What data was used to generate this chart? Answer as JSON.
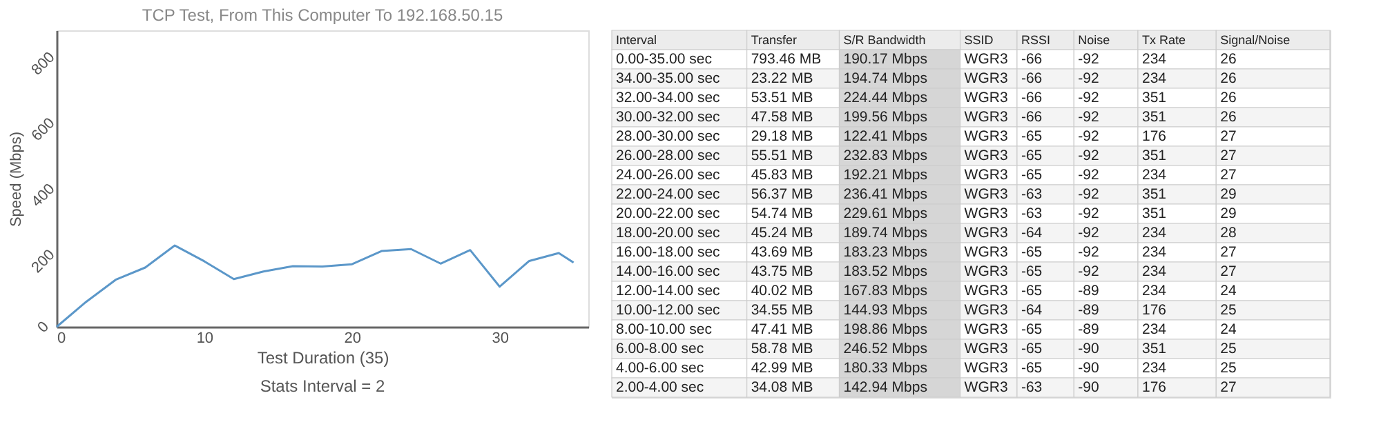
{
  "chart_data": [
    {
      "type": "line",
      "title": "TCP Test,  From This Computer To 192.168.50.15",
      "xlabel": "Test Duration (35)",
      "ylabel": "Speed (Mbps)",
      "annotations": [
        "Stats Interval = 2"
      ],
      "series": [
        {
          "color": "#5b97c9",
          "x": [
            0,
            2,
            4,
            6,
            8,
            10,
            12,
            14,
            16,
            18,
            20,
            22,
            24,
            26,
            28,
            30,
            32,
            34,
            35
          ],
          "values": [
            0,
            76,
            143,
            180,
            247,
            199,
            145,
            168,
            184,
            183,
            190,
            230,
            236,
            192,
            233,
            122,
            200,
            224,
            195
          ]
        }
      ],
      "xlim": [
        0,
        36
      ],
      "xticks": [
        0,
        10,
        20,
        30
      ],
      "ylim": [
        0,
        900
      ],
      "yticks": [
        0,
        200,
        400,
        600,
        800
      ],
      "grid": false,
      "legend": false,
      "marker": "none",
      "line_style": "solid"
    },
    {
      "type": "other",
      "categories": [
        "Interval",
        "Transfer",
        "S/R Bandwidth",
        "SSID",
        "RSSI",
        "Noise",
        "Tx Rate",
        "Signal/Noise"
      ],
      "cell_labels": [
        [
          "0.00-35.00 sec",
          "793.46 MB",
          "190.17 Mbps",
          "WGR3",
          "-66",
          "-92",
          "234",
          "26"
        ],
        [
          "34.00-35.00 sec",
          "23.22 MB",
          "194.74 Mbps",
          "WGR3",
          "-66",
          "-92",
          "234",
          "26"
        ],
        [
          "32.00-34.00 sec",
          "53.51 MB",
          "224.44 Mbps",
          "WGR3",
          "-66",
          "-92",
          "351",
          "26"
        ],
        [
          "30.00-32.00 sec",
          "47.58 MB",
          "199.56 Mbps",
          "WGR3",
          "-66",
          "-92",
          "351",
          "26"
        ],
        [
          "28.00-30.00 sec",
          "29.18 MB",
          "122.41 Mbps",
          "WGR3",
          "-65",
          "-92",
          "176",
          "27"
        ],
        [
          "26.00-28.00 sec",
          "55.51 MB",
          "232.83 Mbps",
          "WGR3",
          "-65",
          "-92",
          "351",
          "27"
        ],
        [
          "24.00-26.00 sec",
          "45.83 MB",
          "192.21 Mbps",
          "WGR3",
          "-65",
          "-92",
          "234",
          "27"
        ],
        [
          "22.00-24.00 sec",
          "56.37 MB",
          "236.41 Mbps",
          "WGR3",
          "-63",
          "-92",
          "351",
          "29"
        ],
        [
          "20.00-22.00 sec",
          "54.74 MB",
          "229.61 Mbps",
          "WGR3",
          "-63",
          "-92",
          "351",
          "29"
        ],
        [
          "18.00-20.00 sec",
          "45.24 MB",
          "189.74 Mbps",
          "WGR3",
          "-64",
          "-92",
          "234",
          "28"
        ],
        [
          "16.00-18.00 sec",
          "43.69 MB",
          "183.23 Mbps",
          "WGR3",
          "-65",
          "-92",
          "234",
          "27"
        ],
        [
          "14.00-16.00 sec",
          "43.75 MB",
          "183.52 Mbps",
          "WGR3",
          "-65",
          "-92",
          "234",
          "27"
        ],
        [
          "12.00-14.00 sec",
          "40.02 MB",
          "167.83 Mbps",
          "WGR3",
          "-65",
          "-89",
          "234",
          "24"
        ],
        [
          "10.00-12.00 sec",
          "34.55 MB",
          "144.93 Mbps",
          "WGR3",
          "-64",
          "-89",
          "176",
          "25"
        ],
        [
          "8.00-10.00 sec",
          "47.41 MB",
          "198.86 Mbps",
          "WGR3",
          "-65",
          "-89",
          "234",
          "24"
        ],
        [
          "6.00-8.00 sec",
          "58.78 MB",
          "246.52 Mbps",
          "WGR3",
          "-65",
          "-90",
          "351",
          "25"
        ],
        [
          "4.00-6.00 sec",
          "42.99 MB",
          "180.33 Mbps",
          "WGR3",
          "-65",
          "-90",
          "234",
          "25"
        ],
        [
          "2.00-4.00 sec",
          "34.08 MB",
          "142.94 Mbps",
          "WGR3",
          "-63",
          "-90",
          "176",
          "27"
        ]
      ]
    }
  ]
}
